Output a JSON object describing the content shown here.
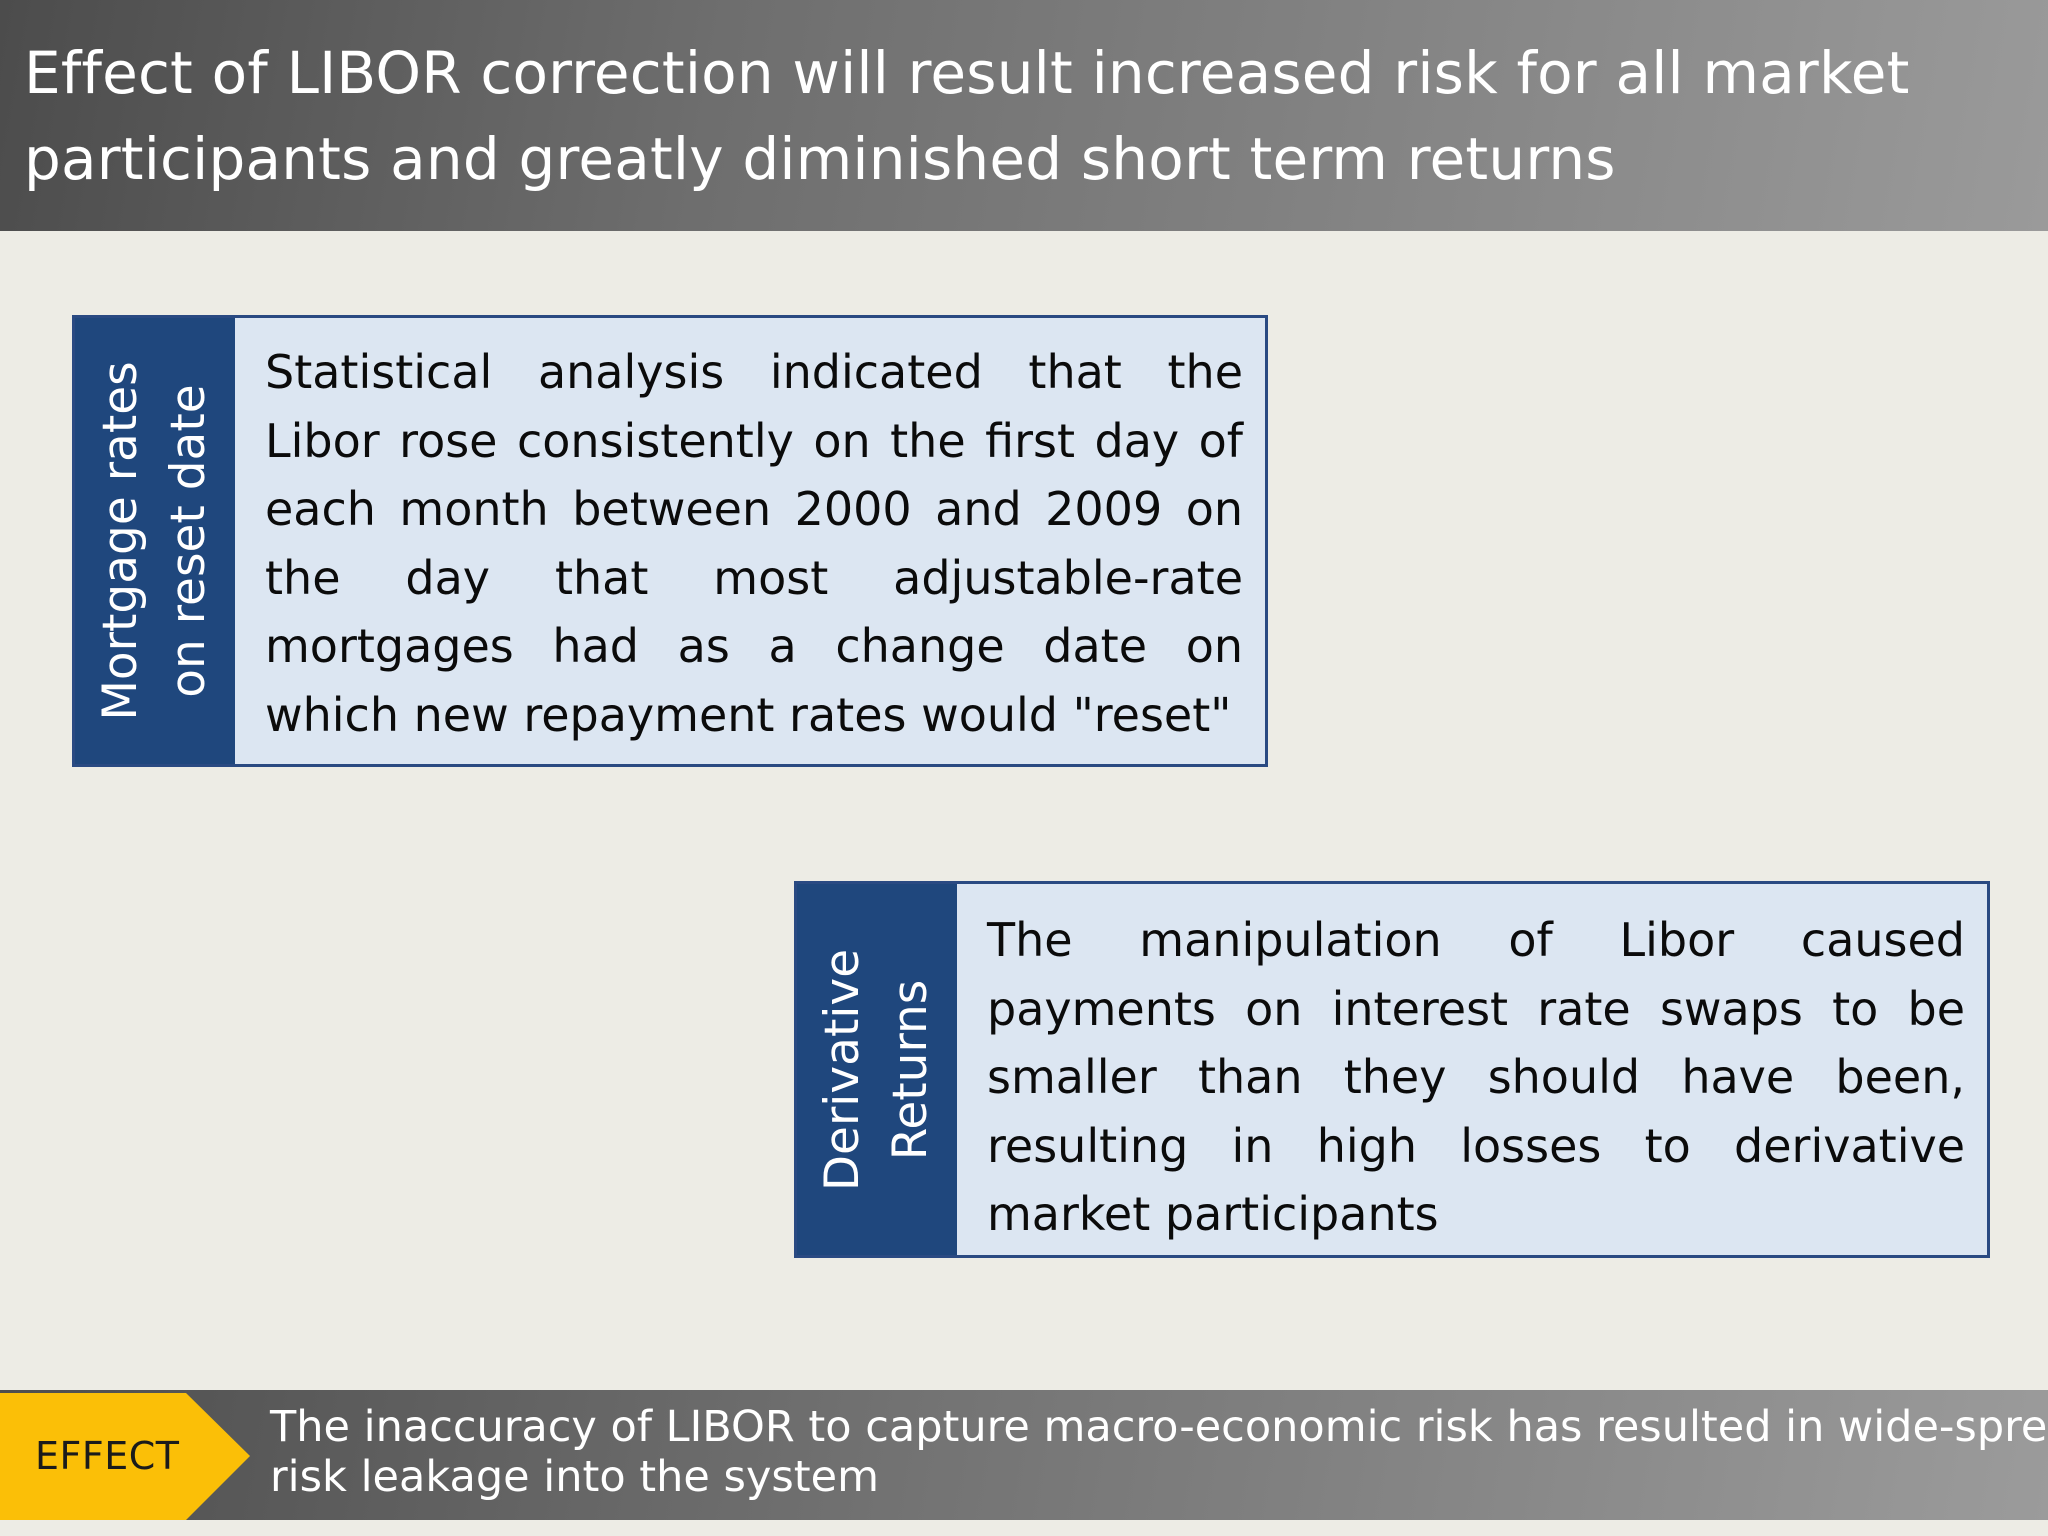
{
  "title": {
    "line1": "Effect of LIBOR correction will result increased risk for all market",
    "line2": "participants and greatly diminished short term returns"
  },
  "cards": [
    {
      "side_label_line1": "Mortgage rates",
      "side_label_line2": "on reset date",
      "body": "Statistical analysis indicated that the Libor rose consistently on the first day of each month between 2000 and 2009 on the day that most adjustable-rate mortgages had as a change date on which new repayment rates would \"reset\""
    },
    {
      "side_label_line1": "Derivative",
      "side_label_line2": "Returns",
      "body": "The manipulation of Libor caused payments on interest rate swaps to be smaller than they should have been, resulting in high losses to derivative market participants"
    }
  ],
  "footer": {
    "tag": "EFFECT",
    "line1": "The inaccuracy of LIBOR to capture macro-economic risk has resulted in wide-spread",
    "line2": "risk leakage into the system"
  },
  "colors": {
    "background": "#edece5",
    "card_side": "#1f477d",
    "card_body": "#dce6f2",
    "effect_tag": "#fbbf07"
  }
}
